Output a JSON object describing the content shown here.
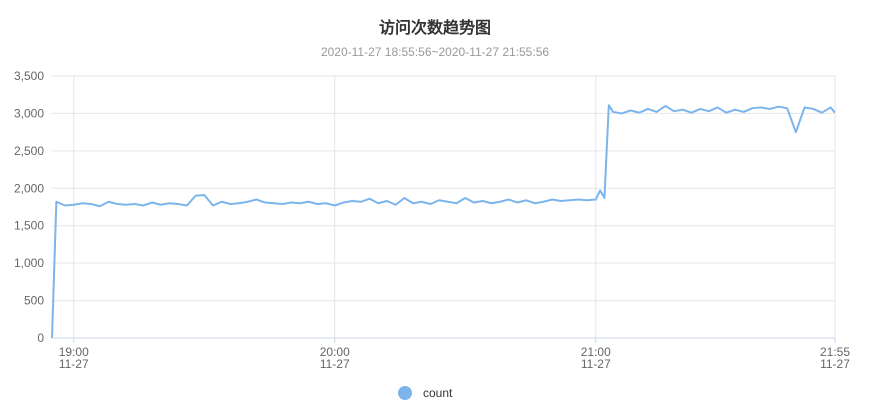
{
  "chart_data": {
    "type": "line",
    "title": "访问次数趋势图",
    "subtitle": "2020-11-27 18:55:56~2020-11-27 21:55:56",
    "x": [
      "11-27 18:55",
      "11-27 18:56",
      "11-27 18:58",
      "11-27 19:00",
      "11-27 19:02",
      "11-27 19:04",
      "11-27 19:06",
      "11-27 19:08",
      "11-27 19:10",
      "11-27 19:12",
      "11-27 19:14",
      "11-27 19:16",
      "11-27 19:18",
      "11-27 19:20",
      "11-27 19:22",
      "11-27 19:24",
      "11-27 19:26",
      "11-27 19:28",
      "11-27 19:30",
      "11-27 19:32",
      "11-27 19:34",
      "11-27 19:36",
      "11-27 19:38",
      "11-27 19:40",
      "11-27 19:42",
      "11-27 19:44",
      "11-27 19:46",
      "11-27 19:48",
      "11-27 19:50",
      "11-27 19:52",
      "11-27 19:54",
      "11-27 19:56",
      "11-27 19:58",
      "11-27 20:00",
      "11-27 20:02",
      "11-27 20:04",
      "11-27 20:06",
      "11-27 20:08",
      "11-27 20:10",
      "11-27 20:12",
      "11-27 20:14",
      "11-27 20:16",
      "11-27 20:18",
      "11-27 20:20",
      "11-27 20:22",
      "11-27 20:24",
      "11-27 20:26",
      "11-27 20:28",
      "11-27 20:30",
      "11-27 20:32",
      "11-27 20:34",
      "11-27 20:36",
      "11-27 20:38",
      "11-27 20:40",
      "11-27 20:42",
      "11-27 20:44",
      "11-27 20:46",
      "11-27 20:48",
      "11-27 20:50",
      "11-27 20:52",
      "11-27 20:54",
      "11-27 20:56",
      "11-27 20:58",
      "11-27 21:00",
      "11-27 21:01",
      "11-27 21:02",
      "11-27 21:03",
      "11-27 21:04",
      "11-27 21:06",
      "11-27 21:08",
      "11-27 21:10",
      "11-27 21:12",
      "11-27 21:14",
      "11-27 21:16",
      "11-27 21:18",
      "11-27 21:20",
      "11-27 21:22",
      "11-27 21:24",
      "11-27 21:26",
      "11-27 21:28",
      "11-27 21:30",
      "11-27 21:32",
      "11-27 21:34",
      "11-27 21:36",
      "11-27 21:38",
      "11-27 21:40",
      "11-27 21:42",
      "11-27 21:44",
      "11-27 21:46",
      "11-27 21:48",
      "11-27 21:50",
      "11-27 21:52",
      "11-27 21:54",
      "11-27 21:55"
    ],
    "series": [
      {
        "name": "count",
        "color": "#7cb5ec",
        "values": [
          0,
          1820,
          1770,
          1780,
          1800,
          1790,
          1760,
          1820,
          1790,
          1780,
          1790,
          1770,
          1810,
          1780,
          1800,
          1790,
          1770,
          1900,
          1910,
          1770,
          1820,
          1790,
          1800,
          1820,
          1850,
          1810,
          1800,
          1790,
          1810,
          1800,
          1820,
          1790,
          1800,
          1770,
          1810,
          1830,
          1820,
          1860,
          1800,
          1830,
          1780,
          1870,
          1800,
          1820,
          1790,
          1840,
          1820,
          1800,
          1870,
          1810,
          1830,
          1800,
          1820,
          1850,
          1810,
          1840,
          1800,
          1820,
          1850,
          1830,
          1840,
          1850,
          1840,
          1850,
          1970,
          1870,
          3110,
          3020,
          3000,
          3040,
          3010,
          3060,
          3020,
          3100,
          3030,
          3050,
          3010,
          3060,
          3030,
          3080,
          3010,
          3050,
          3020,
          3070,
          3080,
          3060,
          3090,
          3070,
          2750,
          3080,
          3060,
          3010,
          3080,
          3010
        ]
      }
    ],
    "xlim": [
      "11-27 18:55",
      "11-27 21:55"
    ],
    "xticks": [
      {
        "value": "11-27 19:00",
        "label": [
          "19:00",
          "11-27"
        ]
      },
      {
        "value": "11-27 20:00",
        "label": [
          "20:00",
          "11-27"
        ]
      },
      {
        "value": "11-27 21:00",
        "label": [
          "21:00",
          "11-27"
        ]
      },
      {
        "value": "11-27 21:55",
        "label": [
          "21:55",
          "11-27"
        ]
      }
    ],
    "ylim": [
      0,
      3500
    ],
    "yticks": [
      0,
      500,
      {
        "value": 1000,
        "label": "1,000"
      },
      {
        "value": 1500,
        "label": "1,500"
      },
      {
        "value": 2000,
        "label": "2,000"
      },
      {
        "value": 2500,
        "label": "2,500"
      },
      {
        "value": 3000,
        "label": "3,000"
      },
      {
        "value": 3500,
        "label": "3,500"
      }
    ],
    "grid": true
  }
}
